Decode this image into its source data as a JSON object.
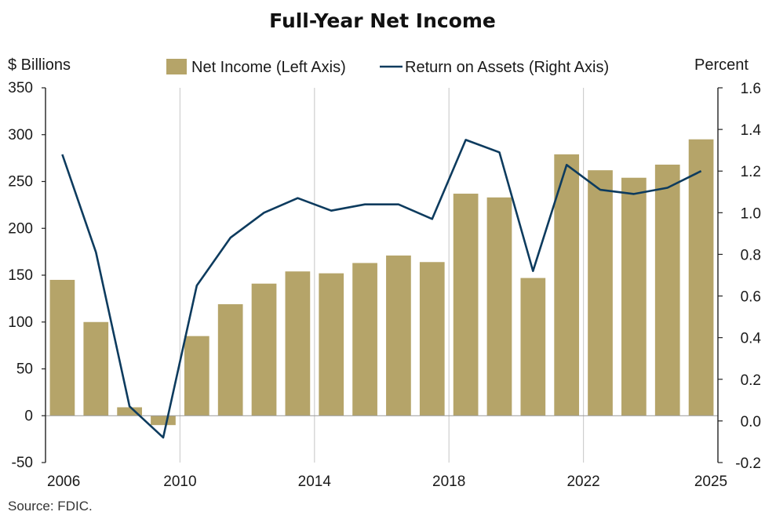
{
  "chart_data": {
    "type": "bar",
    "title": "Full-Year Net Income",
    "left_axis_label": "$ Billions",
    "right_axis_label": "Percent",
    "source": "Source: FDIC.",
    "categories": [
      "2006",
      "2007",
      "2008",
      "2009",
      "2010",
      "2011",
      "2012",
      "2013",
      "2014",
      "2015",
      "2016",
      "2017",
      "2018",
      "2019",
      "2020",
      "2021",
      "2022",
      "2023",
      "2024",
      "2025"
    ],
    "x_tick_labels": [
      "2006",
      "2010",
      "2014",
      "2018",
      "2022",
      "2025"
    ],
    "x_tick_years": [
      2006,
      2010,
      2014,
      2018,
      2022,
      2025
    ],
    "left_ylim": [
      -50,
      350
    ],
    "left_ticks": [
      "-50",
      "0",
      "50",
      "100",
      "150",
      "200",
      "250",
      "300",
      "350"
    ],
    "left_tick_values": [
      -50,
      0,
      50,
      100,
      150,
      200,
      250,
      300,
      350
    ],
    "right_ylim": [
      -0.2,
      1.6
    ],
    "right_ticks": [
      "-0.2",
      "0.0",
      "0.2",
      "0.4",
      "0.6",
      "0.8",
      "1.0",
      "1.2",
      "1.4",
      "1.6"
    ],
    "right_tick_values": [
      -0.2,
      0.0,
      0.2,
      0.4,
      0.6,
      0.8,
      1.0,
      1.2,
      1.4,
      1.6
    ],
    "vertical_gridlines_at": [
      2010,
      2014,
      2018,
      2022
    ],
    "legend_placement": "top-center",
    "series": [
      {
        "name": "Net Income (Left Axis)",
        "type": "bar",
        "axis": "left",
        "color": "#b5a469",
        "values": [
          145,
          100,
          9,
          -10,
          85,
          119,
          141,
          154,
          152,
          163,
          171,
          164,
          237,
          233,
          147,
          279,
          262,
          254,
          268,
          295
        ]
      },
      {
        "name": "Return on Assets (Right Axis)",
        "type": "line",
        "axis": "right",
        "color": "#0d3b5e",
        "values": [
          1.28,
          0.81,
          0.07,
          -0.08,
          0.65,
          0.88,
          1.0,
          1.07,
          1.01,
          1.04,
          1.04,
          0.97,
          1.35,
          1.29,
          0.72,
          1.23,
          1.11,
          1.09,
          1.12,
          1.2
        ]
      }
    ]
  }
}
